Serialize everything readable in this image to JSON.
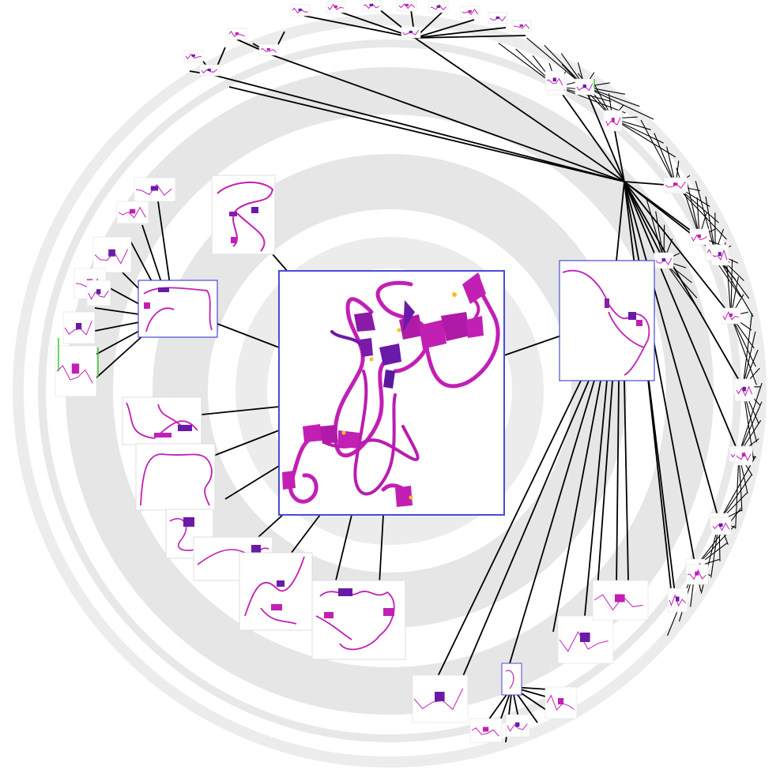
{
  "diagram": {
    "kind": "radial hyperbolic tree of protein structure thumbnails",
    "colors": {
      "background": "#ffffff",
      "ring": "#e6e6e6",
      "edge": "#000000",
      "focus_border": "#4a4ad8",
      "protein": "#c21fb4",
      "protein_dark": "#6a1aa8",
      "protein_light": "#e05ad6",
      "highlight": "#f2c21b",
      "accent_green": "#33cc33"
    },
    "focus_node": "protein-structure-focus",
    "hubs": [
      "left-hub",
      "right-hub",
      "top-right-hub",
      "bottom-hub"
    ],
    "labels": []
  }
}
